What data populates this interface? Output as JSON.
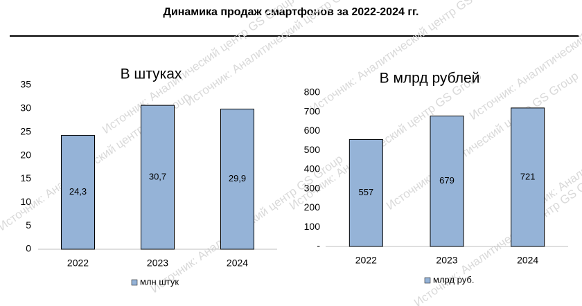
{
  "title": "Динамика продаж смартфонов за 2022-2024 гг.",
  "watermark": "Источник: Аналитический центр GS Group",
  "chart_data": [
    {
      "type": "bar",
      "title": "В штуках",
      "categories": [
        "2022",
        "2023",
        "2024"
      ],
      "series": [
        {
          "name": "млн штук",
          "color": "#95b3d7",
          "values": [
            24.3,
            30.7,
            29.9
          ],
          "value_labels": [
            "24,3",
            "30,7",
            "29,9"
          ]
        }
      ],
      "ylim": [
        0,
        35
      ],
      "yticks": [
        0,
        5,
        10,
        15,
        20,
        25,
        30,
        35
      ],
      "grid": false,
      "legend": "bottom"
    },
    {
      "type": "bar",
      "title": "В млрд рублей",
      "categories": [
        "2022",
        "2023",
        "2024"
      ],
      "series": [
        {
          "name": "млрд руб.",
          "color": "#95b3d7",
          "values": [
            557,
            679,
            721
          ]
        }
      ],
      "ylim": [
        0,
        800
      ],
      "yticks": [
        {
          "value": 0,
          "label": "-"
        },
        100,
        200,
        300,
        400,
        500,
        600,
        700,
        800
      ],
      "grid": false,
      "legend": "bottom"
    }
  ]
}
